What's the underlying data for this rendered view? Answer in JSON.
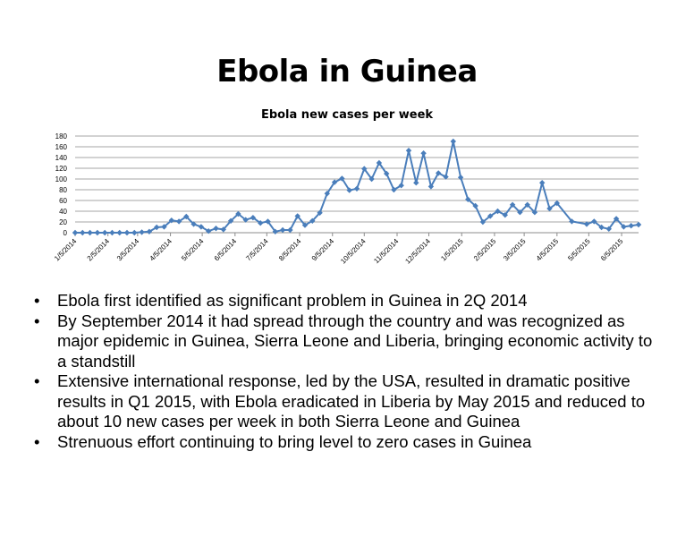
{
  "slide": {
    "title": "Ebola in Guinea"
  },
  "bullets": [
    "Ebola first identified as significant problem in Guinea in 2Q 2014",
    "By September 2014 it had spread through the country and was recognized as major epidemic in Guinea, Sierra Leone and Liberia, bringing economic activity to a standstill",
    "Extensive international response, led by the USA, resulted in dramatic positive results in Q1 2015, with Ebola eradicated in Liberia by May 2015 and reduced to about 10 new cases per week in both Sierra Leone and Guinea",
    "Strenuous effort continuing to bring level to zero cases in Guinea"
  ],
  "bullet_glyph": "•",
  "chart_data": {
    "type": "line",
    "title": "Ebola new cases per week",
    "xlabel": "",
    "ylabel": "",
    "ylim": [
      0,
      180
    ],
    "yticks": [
      0,
      20,
      40,
      60,
      80,
      100,
      120,
      140,
      160,
      180
    ],
    "grid": true,
    "legend": "none",
    "color": "#4A7EBB",
    "x_tick_labels": [
      "1/5/2014",
      "2/5/2014",
      "3/5/2014",
      "4/5/2014",
      "5/5/2014",
      "6/5/2014",
      "7/5/2014",
      "8/5/2014",
      "9/5/2014",
      "10/5/2014",
      "11/5/2014",
      "12/5/2014",
      "1/5/2015",
      "2/5/2015",
      "3/5/2015",
      "4/5/2015",
      "5/5/2015",
      "6/5/2015"
    ],
    "x_start": "2014-01-05",
    "x_end": "2015-06-21",
    "series": [
      {
        "x": [
          "2014-01-05",
          "2014-01-12",
          "2014-01-19",
          "2014-01-26",
          "2014-02-02",
          "2014-02-09",
          "2014-02-16",
          "2014-02-23",
          "2014-03-02",
          "2014-03-09",
          "2014-03-16",
          "2014-03-23",
          "2014-03-30",
          "2014-04-06",
          "2014-04-13",
          "2014-04-20",
          "2014-04-27",
          "2014-05-04",
          "2014-05-11",
          "2014-05-18",
          "2014-05-25",
          "2014-06-01",
          "2014-06-08",
          "2014-06-15",
          "2014-06-22",
          "2014-06-29",
          "2014-07-06",
          "2014-07-13",
          "2014-07-20",
          "2014-07-27",
          "2014-08-03",
          "2014-08-10",
          "2014-08-17",
          "2014-08-24",
          "2014-08-31",
          "2014-09-07",
          "2014-09-14",
          "2014-09-21",
          "2014-09-28",
          "2014-10-05",
          "2014-10-12",
          "2014-10-19",
          "2014-10-26",
          "2014-11-02",
          "2014-11-09",
          "2014-11-16",
          "2014-11-23",
          "2014-11-30",
          "2014-12-07",
          "2014-12-14",
          "2014-12-21",
          "2014-12-28",
          "2015-01-04",
          "2015-01-11",
          "2015-01-18",
          "2015-01-25",
          "2015-02-01",
          "2015-02-08",
          "2015-02-15",
          "2015-02-22",
          "2015-03-01",
          "2015-03-08",
          "2015-03-15",
          "2015-03-22",
          "2015-03-29",
          "2015-04-05",
          "2015-04-19",
          "2015-05-03",
          "2015-05-10",
          "2015-05-17",
          "2015-05-24",
          "2015-05-31",
          "2015-06-07",
          "2015-06-14",
          "2015-06-21"
        ],
        "values": [
          0,
          0,
          0,
          0,
          0,
          0,
          0,
          0,
          0,
          1,
          2,
          10,
          11,
          23,
          21,
          30,
          16,
          11,
          3,
          8,
          6,
          22,
          35,
          24,
          28,
          18,
          21,
          2,
          5,
          5,
          31,
          14,
          22,
          37,
          73,
          94,
          101,
          79,
          82,
          119,
          100,
          130,
          110,
          80,
          88,
          153,
          93,
          148,
          86,
          111,
          104,
          170,
          103,
          62,
          50,
          20,
          31,
          40,
          33,
          52,
          38,
          52,
          38,
          93,
          45,
          55,
          21,
          16,
          21,
          10,
          7,
          26,
          11,
          13,
          15
        ]
      }
    ]
  }
}
